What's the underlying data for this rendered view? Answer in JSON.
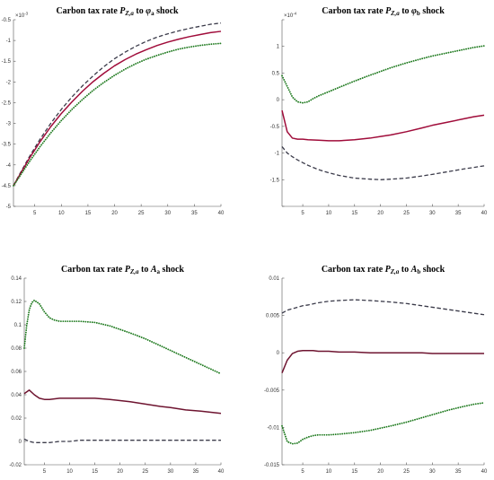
{
  "colors": {
    "green": "#1f7a1f",
    "red": "#a00c3a",
    "dark_red": "#6e1430",
    "gray": "#3b3b4a"
  },
  "chart_data": [
    {
      "type": "line",
      "title": {
        "text": "Carbon tax rate ",
        "P": "P",
        "Psub": "Z,a",
        "mid": " to ",
        "var": "φ",
        "varsub": "a",
        "end": " shock"
      },
      "exponent_label": {
        "base": "×10",
        "power": "-3"
      },
      "xlim": [
        1,
        40
      ],
      "ylim": [
        -5,
        -0.5
      ],
      "xticks": [
        5,
        10,
        15,
        20,
        25,
        30,
        35,
        40
      ],
      "yticks": [
        -0.5,
        -1,
        -1.5,
        -2,
        -2.5,
        -3,
        -3.5,
        -4,
        -4.5,
        -5
      ],
      "ytick_labels": [
        "-0.5",
        "-1",
        "-1.5",
        "-2",
        "-2.5",
        "-3",
        "-3.5",
        "-4",
        "-4.5",
        "-5"
      ],
      "series": [
        {
          "style": "dashed",
          "color": "gray",
          "x": [
            1,
            2,
            4,
            6,
            8,
            10,
            12,
            14,
            16,
            18,
            20,
            22,
            24,
            26,
            28,
            30,
            32,
            34,
            36,
            38,
            40
          ],
          "y": [
            -4.5,
            -4.26,
            -3.8,
            -3.38,
            -3.0,
            -2.66,
            -2.36,
            -2.09,
            -1.85,
            -1.63,
            -1.44,
            -1.28,
            -1.14,
            -1.02,
            -0.92,
            -0.84,
            -0.77,
            -0.71,
            -0.66,
            -0.61,
            -0.58
          ]
        },
        {
          "style": "solid",
          "color": "red",
          "x": [
            1,
            2,
            4,
            6,
            8,
            10,
            12,
            14,
            16,
            18,
            20,
            22,
            24,
            26,
            28,
            30,
            32,
            34,
            36,
            38,
            40
          ],
          "y": [
            -4.5,
            -4.28,
            -3.84,
            -3.44,
            -3.08,
            -2.76,
            -2.48,
            -2.22,
            -1.99,
            -1.79,
            -1.61,
            -1.46,
            -1.33,
            -1.22,
            -1.12,
            -1.04,
            -0.97,
            -0.91,
            -0.86,
            -0.81,
            -0.78
          ]
        },
        {
          "style": "dotted",
          "color": "green",
          "x": [
            1,
            2,
            4,
            6,
            8,
            10,
            12,
            14,
            16,
            18,
            20,
            22,
            24,
            26,
            28,
            30,
            32,
            34,
            36,
            38,
            40
          ],
          "y": [
            -4.5,
            -4.31,
            -3.92,
            -3.56,
            -3.23,
            -2.93,
            -2.66,
            -2.42,
            -2.2,
            -2.01,
            -1.84,
            -1.69,
            -1.56,
            -1.45,
            -1.36,
            -1.28,
            -1.21,
            -1.16,
            -1.12,
            -1.09,
            -1.07
          ]
        }
      ]
    },
    {
      "type": "line",
      "title": {
        "text": "Carbon tax rate ",
        "P": "P",
        "Psub": "Z,a",
        "mid": " to ",
        "var": "φ",
        "varsub": "b",
        "end": " shock"
      },
      "exponent_label": {
        "base": "×10",
        "power": "-4"
      },
      "xlim": [
        1,
        40
      ],
      "ylim": [
        -2,
        1.5
      ],
      "xticks": [
        5,
        10,
        15,
        20,
        25,
        30,
        35,
        40
      ],
      "yticks": [
        1.5,
        1,
        0.5,
        0,
        -0.5,
        -1,
        -1.5,
        -2
      ],
      "ytick_labels": [
        "",
        "1",
        "0.5",
        "0",
        "-0.5",
        "-1",
        "-1.5",
        ""
      ],
      "series": [
        {
          "style": "dotted",
          "color": "green",
          "x": [
            1,
            2,
            3,
            4,
            5,
            6,
            7,
            8,
            10,
            12,
            15,
            18,
            20,
            22,
            25,
            28,
            30,
            33,
            36,
            38,
            40
          ],
          "y": [
            0.45,
            0.25,
            0.05,
            -0.04,
            -0.06,
            -0.04,
            0.02,
            0.07,
            0.15,
            0.23,
            0.35,
            0.46,
            0.53,
            0.6,
            0.69,
            0.77,
            0.82,
            0.88,
            0.94,
            0.98,
            1.01
          ]
        },
        {
          "style": "solid",
          "color": "red",
          "x": [
            1,
            2,
            3,
            4,
            5,
            6,
            8,
            10,
            12,
            15,
            18,
            20,
            22,
            25,
            28,
            30,
            33,
            36,
            38,
            40
          ],
          "y": [
            -0.2,
            -0.6,
            -0.72,
            -0.74,
            -0.74,
            -0.75,
            -0.76,
            -0.77,
            -0.77,
            -0.75,
            -0.72,
            -0.69,
            -0.66,
            -0.6,
            -0.53,
            -0.48,
            -0.42,
            -0.36,
            -0.32,
            -0.29
          ]
        },
        {
          "style": "dashed",
          "color": "gray",
          "x": [
            1,
            2,
            3,
            4,
            5,
            6,
            8,
            10,
            12,
            15,
            18,
            20,
            22,
            25,
            28,
            30,
            33,
            36,
            38,
            40
          ],
          "y": [
            -0.88,
            -1.0,
            -1.07,
            -1.13,
            -1.18,
            -1.23,
            -1.31,
            -1.37,
            -1.42,
            -1.47,
            -1.49,
            -1.5,
            -1.49,
            -1.47,
            -1.43,
            -1.4,
            -1.35,
            -1.3,
            -1.27,
            -1.24
          ]
        }
      ]
    },
    {
      "type": "line",
      "title": {
        "text": "Carbon tax rate ",
        "P": "P",
        "Psub": "Z,a",
        "mid": " to ",
        "var": "A",
        "varsub": "a",
        "end": " shock"
      },
      "exponent_label": null,
      "xlim": [
        1,
        40
      ],
      "ylim": [
        -0.02,
        0.14
      ],
      "xticks": [
        5,
        10,
        15,
        20,
        25,
        30,
        35,
        40
      ],
      "yticks": [
        0.14,
        0.12,
        0.1,
        0.08,
        0.06,
        0.04,
        0.02,
        0,
        -0.02
      ],
      "ytick_labels": [
        "0.14",
        "0.12",
        "0.1",
        "0.08",
        "0.06",
        "0.04",
        "0.02",
        "0",
        "-0.02"
      ],
      "series": [
        {
          "style": "dotted",
          "color": "green",
          "x": [
            1,
            1.5,
            2,
            2.5,
            3,
            4,
            5,
            6,
            7,
            8,
            10,
            12,
            15,
            18,
            20,
            22,
            25,
            28,
            30,
            33,
            36,
            38,
            40
          ],
          "y": [
            0.08,
            0.1,
            0.113,
            0.119,
            0.121,
            0.118,
            0.111,
            0.106,
            0.104,
            0.103,
            0.103,
            0.103,
            0.102,
            0.099,
            0.096,
            0.093,
            0.088,
            0.082,
            0.078,
            0.072,
            0.066,
            0.062,
            0.058
          ]
        },
        {
          "style": "solid",
          "color": "dark_red",
          "x": [
            1,
            2,
            3,
            4,
            5,
            6,
            8,
            10,
            12,
            15,
            18,
            20,
            22,
            25,
            28,
            30,
            33,
            36,
            38,
            40
          ],
          "y": [
            0.041,
            0.044,
            0.04,
            0.037,
            0.036,
            0.036,
            0.037,
            0.037,
            0.037,
            0.037,
            0.036,
            0.035,
            0.034,
            0.032,
            0.03,
            0.029,
            0.027,
            0.026,
            0.025,
            0.024
          ]
        },
        {
          "style": "dashed",
          "color": "gray",
          "x": [
            1,
            2,
            3,
            4,
            5,
            6,
            8,
            10,
            12,
            15,
            18,
            20,
            22,
            25,
            28,
            30,
            33,
            36,
            38,
            40
          ],
          "y": [
            0.002,
            0.0,
            -0.001,
            -0.001,
            -0.001,
            -0.001,
            0.0,
            0.0,
            0.001,
            0.001,
            0.001,
            0.001,
            0.001,
            0.001,
            0.001,
            0.001,
            0.001,
            0.001,
            0.001,
            0.001
          ]
        }
      ]
    },
    {
      "type": "line",
      "title": {
        "text": "Carbon tax rate ",
        "P": "P",
        "Psub": "Z,a",
        "mid": " to ",
        "var": "A",
        "varsub": "b",
        "end": " shock"
      },
      "exponent_label": null,
      "xlim": [
        1,
        40
      ],
      "ylim": [
        -0.015,
        0.01
      ],
      "xticks": [
        5,
        10,
        15,
        20,
        25,
        30,
        35,
        40
      ],
      "yticks": [
        0.01,
        0.005,
        0,
        -0.005,
        -0.01,
        -0.015
      ],
      "ytick_labels": [
        "0.01",
        "0.005",
        "0",
        "-0.005",
        "-0.01",
        "-0.015"
      ],
      "series": [
        {
          "style": "dashed",
          "color": "gray",
          "x": [
            1,
            2,
            3,
            4,
            5,
            6,
            8,
            10,
            12,
            15,
            18,
            20,
            22,
            25,
            28,
            30,
            33,
            36,
            38,
            40
          ],
          "y": [
            0.0053,
            0.0057,
            0.0059,
            0.0061,
            0.0063,
            0.0064,
            0.0067,
            0.0069,
            0.007,
            0.0071,
            0.007,
            0.0069,
            0.0068,
            0.0066,
            0.0063,
            0.0061,
            0.0058,
            0.0055,
            0.0053,
            0.0051
          ]
        },
        {
          "style": "solid",
          "color": "dark_red",
          "x": [
            1,
            2,
            3,
            4,
            5,
            6,
            7,
            8,
            10,
            12,
            15,
            18,
            20,
            22,
            25,
            28,
            30,
            33,
            36,
            38,
            40
          ],
          "y": [
            -0.0027,
            -0.001,
            -0.0001,
            0.0002,
            0.0003,
            0.0003,
            0.0003,
            0.0002,
            0.0002,
            0.0001,
            0.0001,
            0.0,
            0.0,
            0.0,
            0.0,
            0.0,
            -0.0001,
            -0.0001,
            -0.0001,
            -0.0001,
            -0.0001
          ]
        },
        {
          "style": "dotted",
          "color": "green",
          "x": [
            1,
            2,
            3,
            4,
            5,
            6,
            7,
            8,
            10,
            12,
            15,
            18,
            20,
            22,
            25,
            28,
            30,
            33,
            36,
            38,
            40
          ],
          "y": [
            -0.0098,
            -0.0119,
            -0.0122,
            -0.0121,
            -0.0116,
            -0.0113,
            -0.0111,
            -0.011,
            -0.011,
            -0.0109,
            -0.0107,
            -0.0104,
            -0.0101,
            -0.0098,
            -0.0093,
            -0.0087,
            -0.0083,
            -0.0077,
            -0.0072,
            -0.0069,
            -0.0067
          ]
        }
      ]
    }
  ]
}
